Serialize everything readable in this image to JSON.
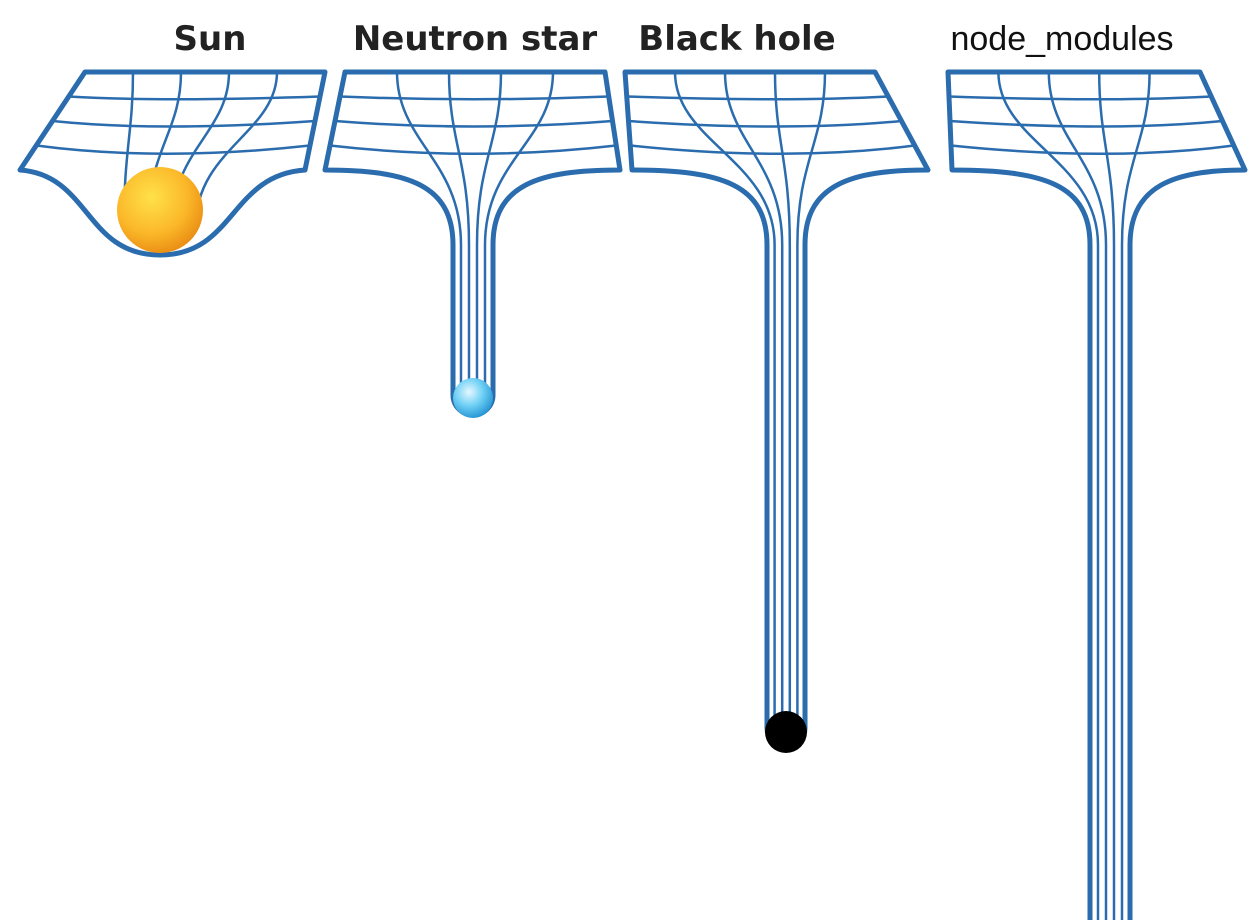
{
  "labels": [
    "Sun",
    "Neutron star",
    "Black hole",
    "node_modules"
  ]
}
